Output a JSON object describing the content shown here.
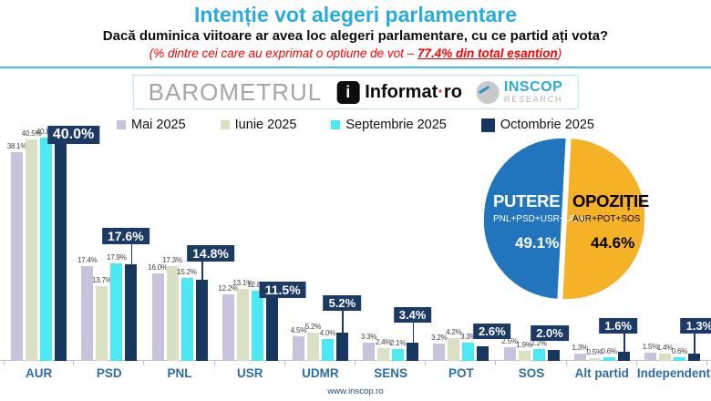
{
  "header": {
    "title": "Intenție vot alegeri parlamentare",
    "subtitle": "Dacă duminica viitoare ar avea loc alegeri parlamentare, cu ce partid ați vota?",
    "note_prefix": "(% dintre cei care au exprimat o optiune de vot – ",
    "note_highlight": "77.4% din total eșantion",
    "note_suffix": ")"
  },
  "branding": {
    "barometrul": "BAROMETRUL",
    "informat_icon_letter": "i",
    "informat_name": "Informat",
    "informat_dot": "·",
    "informat_tld": "ro",
    "inscop_name": "INSCOP",
    "inscop_sub": "RESEARCH"
  },
  "footer": {
    "url": "www.inscop.ro"
  },
  "colors": {
    "title_blue": "#29ABE2",
    "note_red": "#FF0000",
    "divider_blue": "#45B9E8",
    "axis_label_blue": "#2E6DA4",
    "callout_navy": "#1B3A66",
    "pie_power_blue": "#2175BC",
    "pie_opposition_yellow": "#F6B226"
  },
  "chart_data": [
    {
      "type": "bar",
      "title": "Intenție vot alegeri parlamentare",
      "categories": [
        "AUR",
        "PSD",
        "PNL",
        "USR",
        "UDMR",
        "SENS",
        "POT",
        "SOS",
        "Alt partid",
        "Independent"
      ],
      "series": [
        {
          "name": "Mai 2025",
          "color": "#C8C2DC",
          "values": [
            38.1,
            17.4,
            16.0,
            12.2,
            4.5,
            3.3,
            3.2,
            2.5,
            1.3,
            1.5
          ]
        },
        {
          "name": "Iunie 2025",
          "color": "#D9E0C3",
          "values": [
            40.5,
            13.7,
            17.3,
            13.1,
            5.2,
            2.4,
            4.2,
            1.9,
            0.5,
            1.4
          ]
        },
        {
          "name": "Septembrie 2025",
          "color": "#4DE9F2",
          "values": [
            40.8,
            17.9,
            15.2,
            12.8,
            4.0,
            2.1,
            3.3,
            2.2,
            0.6,
            0.6
          ]
        },
        {
          "name": "Octombrie 2025",
          "color": "#17375E",
          "values": [
            40.0,
            17.6,
            14.8,
            11.5,
            5.2,
            3.4,
            2.6,
            2.0,
            1.6,
            1.3
          ]
        }
      ],
      "value_suffix": "%",
      "ylim": [
        0,
        45
      ],
      "grid": false,
      "legend_position": "top",
      "highlight_series": "Octombrie 2025"
    },
    {
      "type": "pie",
      "slices": [
        {
          "label": "PUTERE",
          "sublabel": "PNL+PSD+USR+UDMR",
          "value": 49.1,
          "display": "49.1%",
          "color": "#2175BC",
          "text_color": "#FFFFFF"
        },
        {
          "label": "OPOZIȚIE",
          "sublabel": "AUR+POT+SOS",
          "value": 44.6,
          "display": "44.6%",
          "color": "#F6B226",
          "text_color": "#000000"
        }
      ]
    }
  ]
}
